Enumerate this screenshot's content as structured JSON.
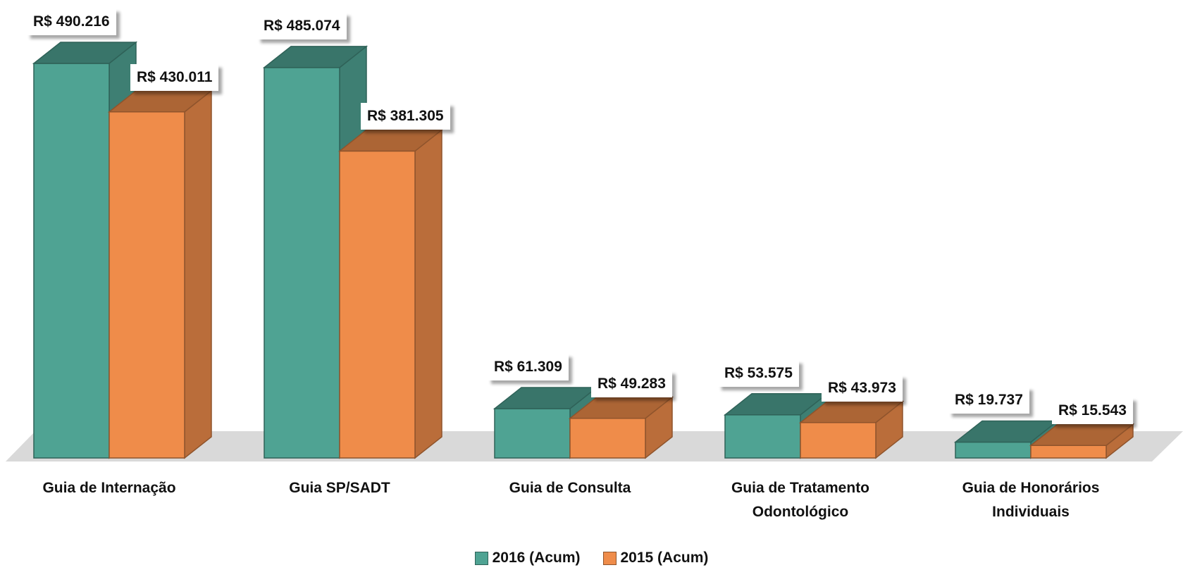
{
  "chart_data": {
    "type": "bar",
    "categories": [
      "Guia de Internação",
      "Guia SP/SADT",
      "Guia de Consulta",
      "Guia de Tratamento Odontológico",
      "Guia de Honorários Individuais"
    ],
    "series": [
      {
        "name": "2016 (Acum)",
        "color": "#4fa393",
        "values": [
          490216,
          485074,
          61309,
          53575,
          19737
        ],
        "value_labels": [
          "R$ 490.216",
          "R$ 485.074",
          "R$ 61.309",
          "R$ 53.575",
          "R$ 19.737"
        ]
      },
      {
        "name": "2015 (Acum)",
        "color": "#ef8c4a",
        "values": [
          430011,
          381305,
          49283,
          43973,
          15543
        ],
        "value_labels": [
          "R$ 430.011",
          "R$ 381.305",
          "R$ 49.283",
          "R$ 43.973",
          "R$ 15.543"
        ]
      }
    ]
  }
}
